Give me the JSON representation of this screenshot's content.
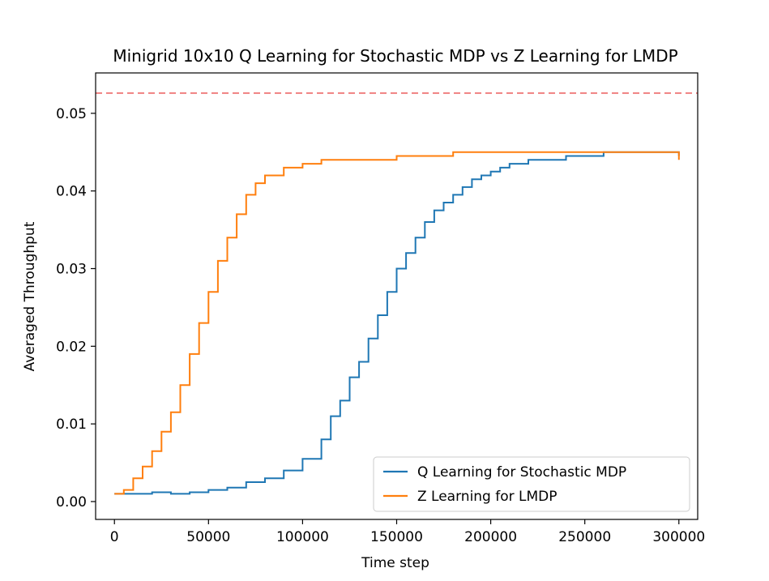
{
  "chart_data": {
    "type": "line",
    "title": "Minigrid 10x10 Q Learning for Stochastic MDP vs Z Learning for LMDP",
    "xlabel": "Time step",
    "ylabel": "Averaged Throughput",
    "xlim": [
      -10000,
      310000
    ],
    "ylim": [
      -0.0023,
      0.0552
    ],
    "xticks": [
      0,
      50000,
      100000,
      150000,
      200000,
      250000,
      300000
    ],
    "xtick_labels": [
      "0",
      "50000",
      "100000",
      "150000",
      "200000",
      "250000",
      "300000"
    ],
    "yticks": [
      0.0,
      0.01,
      0.02,
      0.03,
      0.04,
      0.05
    ],
    "ytick_labels": [
      "0.00",
      "0.01",
      "0.02",
      "0.03",
      "0.04",
      "0.05"
    ],
    "grid": false,
    "legend_position": "lower right",
    "reference_line": {
      "y": 0.0526,
      "style": "dashed",
      "color": "#f08080"
    },
    "series": [
      {
        "name": "Q Learning for Stochastic MDP",
        "color": "#1f77b4",
        "x": [
          0,
          10000,
          20000,
          30000,
          40000,
          50000,
          60000,
          70000,
          80000,
          90000,
          100000,
          110000,
          115000,
          120000,
          125000,
          130000,
          135000,
          140000,
          145000,
          150000,
          155000,
          160000,
          165000,
          170000,
          175000,
          180000,
          185000,
          190000,
          195000,
          200000,
          205000,
          210000,
          220000,
          230000,
          240000,
          250000,
          260000,
          270000,
          280000,
          290000,
          300000
        ],
        "values": [
          0.001,
          0.001,
          0.0012,
          0.001,
          0.0012,
          0.0015,
          0.0018,
          0.0025,
          0.003,
          0.004,
          0.0055,
          0.008,
          0.011,
          0.013,
          0.016,
          0.018,
          0.021,
          0.024,
          0.027,
          0.03,
          0.032,
          0.034,
          0.036,
          0.0375,
          0.0385,
          0.0395,
          0.0405,
          0.0415,
          0.042,
          0.0425,
          0.043,
          0.0435,
          0.044,
          0.044,
          0.0445,
          0.0445,
          0.045,
          0.045,
          0.045,
          0.045,
          0.0445
        ]
      },
      {
        "name": "Z Learning for LMDP",
        "color": "#ff7f0e",
        "x": [
          0,
          5000,
          10000,
          15000,
          20000,
          25000,
          30000,
          35000,
          40000,
          45000,
          50000,
          55000,
          60000,
          65000,
          70000,
          75000,
          80000,
          90000,
          100000,
          110000,
          120000,
          130000,
          140000,
          150000,
          160000,
          170000,
          180000,
          190000,
          200000,
          210000,
          220000,
          230000,
          240000,
          250000,
          260000,
          270000,
          280000,
          290000,
          300000
        ],
        "values": [
          0.001,
          0.0015,
          0.003,
          0.0045,
          0.0065,
          0.009,
          0.0115,
          0.015,
          0.019,
          0.023,
          0.027,
          0.031,
          0.034,
          0.037,
          0.0395,
          0.041,
          0.042,
          0.043,
          0.0435,
          0.044,
          0.044,
          0.044,
          0.044,
          0.0445,
          0.0445,
          0.0445,
          0.045,
          0.045,
          0.045,
          0.045,
          0.045,
          0.045,
          0.045,
          0.045,
          0.045,
          0.045,
          0.045,
          0.045,
          0.044
        ]
      }
    ]
  }
}
